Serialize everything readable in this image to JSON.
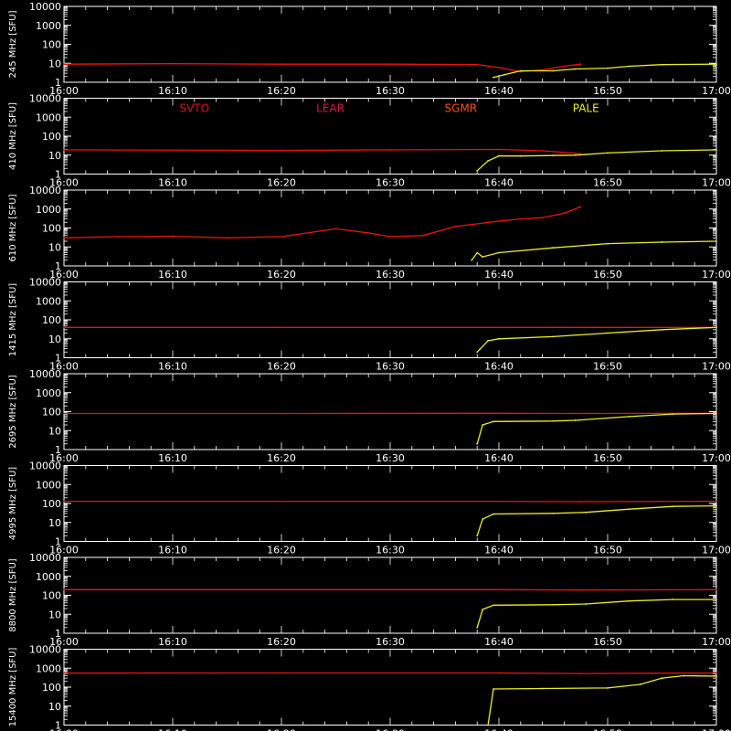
{
  "chart_data": {
    "type": "line",
    "x_ticks": [
      "16:00",
      "16:10",
      "16:20",
      "16:30",
      "16:40",
      "16:50",
      "17:00"
    ],
    "x_range_minutes": [
      0,
      60
    ],
    "y_ticks": [
      "1",
      "10",
      "100",
      "1000",
      "10000"
    ],
    "y_scale": "log",
    "ylim": [
      1,
      10000
    ],
    "station_labels": [
      {
        "name": "SVTO",
        "color": "#dd1111",
        "minute": 12
      },
      {
        "name": "LEAR",
        "color": "#dd1155",
        "minute": 24.5
      },
      {
        "name": "SGMR",
        "color": "#ee5511",
        "minute": 36.5
      },
      {
        "name": "PALE",
        "color": "#eeee22",
        "minute": 48
      }
    ],
    "panels": [
      {
        "label": "245 MHz [SFU]",
        "series": [
          {
            "station": "SVTO",
            "color": "#ee1111",
            "points": [
              [
                0,
                9
              ],
              [
                10,
                9.5
              ],
              [
                20,
                9
              ],
              [
                30,
                9
              ],
              [
                38,
                8.5
              ],
              [
                40,
                6
              ],
              [
                42,
                3.6
              ],
              [
                44,
                4.5
              ],
              [
                46,
                7
              ],
              [
                47.5,
                9
              ]
            ]
          },
          {
            "station": "PALE",
            "color": "#eeee22",
            "points": [
              [
                39.5,
                1.8
              ],
              [
                40.5,
                2.5
              ],
              [
                42,
                4
              ],
              [
                45,
                4
              ],
              [
                47,
                5
              ],
              [
                50,
                5.5
              ],
              [
                52,
                7
              ],
              [
                55,
                8.5
              ],
              [
                60,
                9
              ]
            ]
          }
        ]
      },
      {
        "label": "410 MHz [SFU]",
        "series": [
          {
            "station": "SVTO",
            "color": "#ee1111",
            "points": [
              [
                0,
                19
              ],
              [
                20,
                18
              ],
              [
                30,
                19
              ],
              [
                40,
                20
              ],
              [
                44,
                17
              ],
              [
                47.5,
                12
              ]
            ]
          },
          {
            "station": "PALE",
            "color": "#eeee22",
            "points": [
              [
                38,
                1.5
              ],
              [
                39,
                5
              ],
              [
                40,
                9
              ],
              [
                42,
                9
              ],
              [
                45,
                9.5
              ],
              [
                47,
                10
              ],
              [
                50,
                13
              ],
              [
                55,
                17
              ],
              [
                60,
                19
              ]
            ]
          }
        ]
      },
      {
        "label": "610 MHz [SFU]",
        "series": [
          {
            "station": "SVTO",
            "color": "#ee1111",
            "points": [
              [
                0,
                30
              ],
              [
                5,
                35
              ],
              [
                10,
                37
              ],
              [
                15,
                30
              ],
              [
                20,
                35
              ],
              [
                25,
                90
              ],
              [
                28,
                55
              ],
              [
                30,
                35
              ],
              [
                33,
                40
              ],
              [
                36,
                120
              ],
              [
                40,
                230
              ],
              [
                42,
                300
              ],
              [
                44,
                350
              ],
              [
                46,
                600
              ],
              [
                47.5,
                1300
              ]
            ]
          },
          {
            "station": "PALE",
            "color": "#eeee22",
            "points": [
              [
                37.5,
                2
              ],
              [
                38,
                5
              ],
              [
                38.5,
                3
              ],
              [
                40,
                5
              ],
              [
                45,
                9
              ],
              [
                50,
                15
              ],
              [
                55,
                18
              ],
              [
                60,
                20
              ]
            ]
          }
        ]
      },
      {
        "label": "1415 MHz [SFU]",
        "series": [
          {
            "station": "SVTO",
            "color": "#ee1111",
            "points": [
              [
                0,
                40
              ],
              [
                20,
                40
              ],
              [
                40,
                40
              ],
              [
                47.5,
                40
              ],
              [
                60,
                40
              ]
            ]
          },
          {
            "station": "PALE",
            "color": "#eeee22",
            "points": [
              [
                38,
                2
              ],
              [
                39,
                8
              ],
              [
                40,
                10
              ],
              [
                45,
                13
              ],
              [
                50,
                20
              ],
              [
                55,
                30
              ],
              [
                60,
                40
              ]
            ]
          }
        ]
      },
      {
        "label": "2695 MHz [SFU]",
        "series": [
          {
            "station": "SVTO",
            "color": "#ee1111",
            "points": [
              [
                0,
                80
              ],
              [
                20,
                80
              ],
              [
                40,
                82
              ],
              [
                47.5,
                80
              ],
              [
                60,
                82
              ]
            ]
          },
          {
            "station": "PALE",
            "color": "#eeee22",
            "points": [
              [
                38,
                2
              ],
              [
                38.5,
                20
              ],
              [
                39.5,
                30
              ],
              [
                45,
                32
              ],
              [
                47,
                35
              ],
              [
                52,
                55
              ],
              [
                56,
                75
              ],
              [
                60,
                80
              ]
            ]
          }
        ]
      },
      {
        "label": "4995 MHz [SFU]",
        "series": [
          {
            "station": "SVTO",
            "color": "#ee1111",
            "points": [
              [
                0,
                130
              ],
              [
                20,
                130
              ],
              [
                40,
                130
              ],
              [
                47.5,
                125
              ],
              [
                60,
                130
              ]
            ]
          },
          {
            "station": "PALE",
            "color": "#eeee22",
            "points": [
              [
                38,
                2
              ],
              [
                38.5,
                15
              ],
              [
                39.5,
                28
              ],
              [
                45,
                30
              ],
              [
                48,
                34
              ],
              [
                52,
                50
              ],
              [
                56,
                70
              ],
              [
                60,
                75
              ]
            ]
          }
        ]
      },
      {
        "label": "8800 MHz [SFU]",
        "series": [
          {
            "station": "SVTO",
            "color": "#ee1111",
            "points": [
              [
                0,
                200
              ],
              [
                20,
                200
              ],
              [
                40,
                200
              ],
              [
                47.5,
                190
              ],
              [
                60,
                200
              ]
            ]
          },
          {
            "station": "PALE",
            "color": "#eeee22",
            "points": [
              [
                38,
                2
              ],
              [
                38.5,
                18
              ],
              [
                39.5,
                30
              ],
              [
                45,
                32
              ],
              [
                48,
                35
              ],
              [
                52,
                50
              ],
              [
                56,
                60
              ],
              [
                60,
                60
              ]
            ]
          }
        ]
      },
      {
        "label": "15400 MHz [SFU]",
        "series": [
          {
            "station": "SVTO",
            "color": "#ee1111",
            "points": [
              [
                0,
                550
              ],
              [
                20,
                560
              ],
              [
                40,
                560
              ],
              [
                47.5,
                520
              ],
              [
                60,
                560
              ]
            ]
          },
          {
            "station": "PALE",
            "color": "#eeee22",
            "points": [
              [
                39,
                1
              ],
              [
                39.5,
                80
              ],
              [
                44,
                85
              ],
              [
                50,
                90
              ],
              [
                53,
                140
              ],
              [
                55,
                300
              ],
              [
                57,
                400
              ],
              [
                60,
                380
              ]
            ]
          }
        ]
      }
    ]
  }
}
